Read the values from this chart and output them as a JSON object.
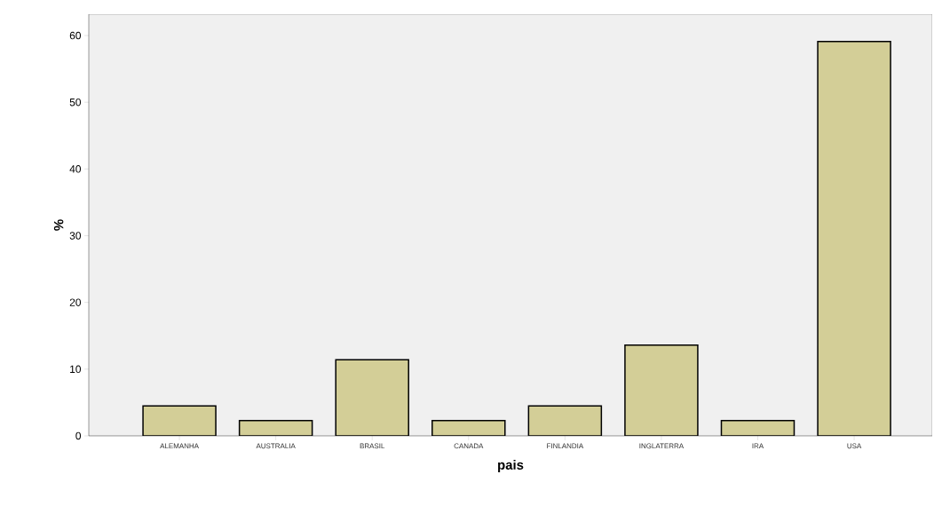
{
  "chart_data": {
    "type": "bar",
    "xlabel": "pais",
    "ylabel": "%",
    "categories": [
      "ALEMANHA",
      "AUSTRALIA",
      "BRASIL",
      "CANADA",
      "FINLANDIA",
      "INGLATERRA",
      "IRA",
      "USA"
    ],
    "values": [
      4.5,
      2.3,
      11.4,
      2.3,
      4.5,
      13.6,
      2.3,
      59.1
    ],
    "color": "#d3ce97",
    "ylim": [
      0,
      63.2
    ],
    "yticks": [
      0,
      10,
      20,
      30,
      40,
      50,
      60
    ],
    "grid": false
  }
}
